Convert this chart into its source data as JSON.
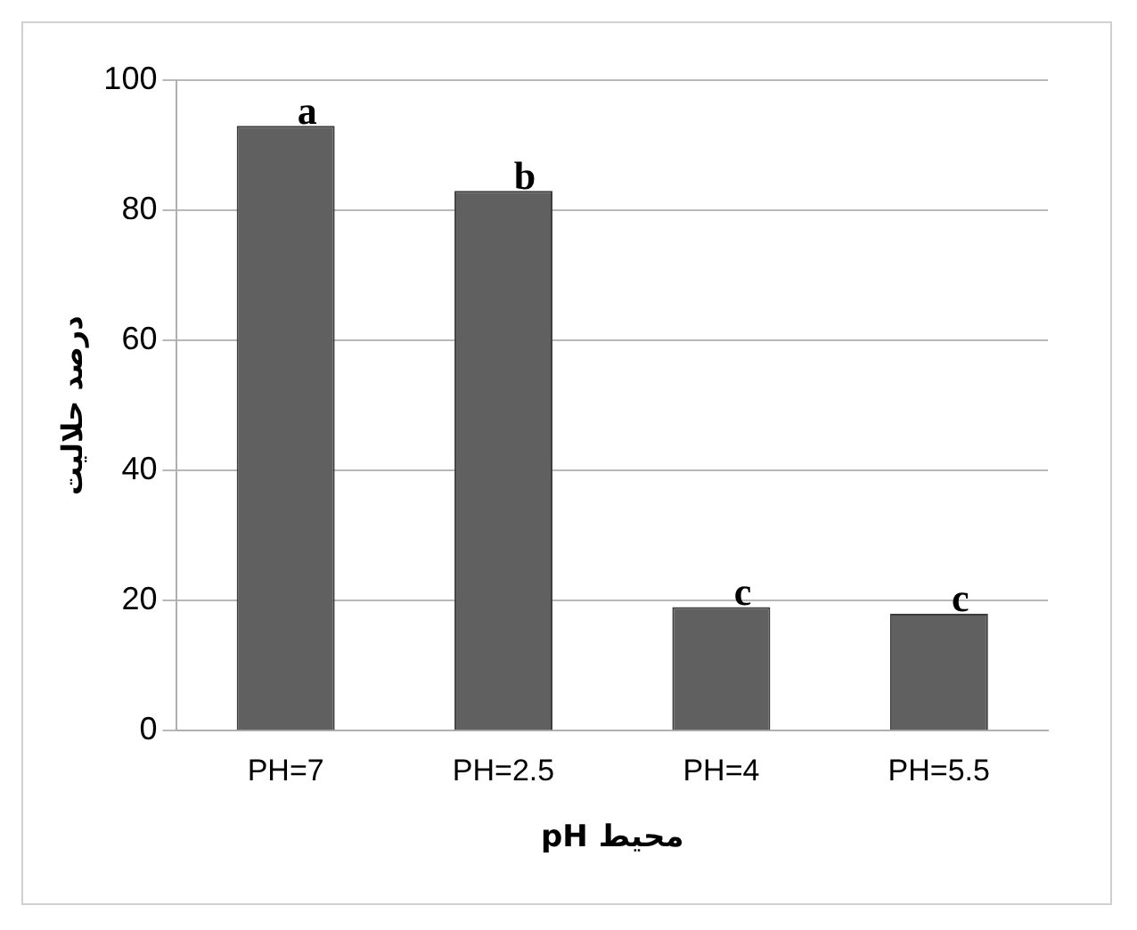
{
  "chart_data": {
    "type": "bar",
    "xlabel": "pH محیط",
    "ylabel": "درصد حلالیت",
    "categories": [
      "PH=7",
      "PH=2.5",
      "PH=4",
      "PH=5.5"
    ],
    "values": [
      93,
      83,
      19,
      18
    ],
    "color": "#606060",
    "ylim": [
      0,
      100
    ],
    "yticks": [
      0,
      20,
      40,
      60,
      80,
      100
    ],
    "grid": "y",
    "legend": false,
    "annotations": [
      {
        "text": "a",
        "x": "PH=7",
        "y": 93
      },
      {
        "text": "b",
        "x": "PH=2.5",
        "y": 83
      },
      {
        "text": "c",
        "x": "PH=4",
        "y": 19
      },
      {
        "text": "c",
        "x": "PH=5.5",
        "y": 18
      }
    ]
  }
}
